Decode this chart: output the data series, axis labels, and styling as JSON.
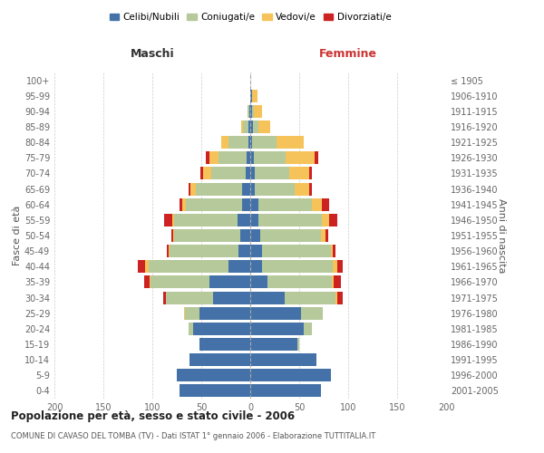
{
  "age_groups": [
    "0-4",
    "5-9",
    "10-14",
    "15-19",
    "20-24",
    "25-29",
    "30-34",
    "35-39",
    "40-44",
    "45-49",
    "50-54",
    "55-59",
    "60-64",
    "65-69",
    "70-74",
    "75-79",
    "80-84",
    "85-89",
    "90-94",
    "95-99",
    "100+"
  ],
  "birth_years": [
    "2001-2005",
    "1996-2000",
    "1991-1995",
    "1986-1990",
    "1981-1985",
    "1976-1980",
    "1971-1975",
    "1966-1970",
    "1961-1965",
    "1956-1960",
    "1951-1955",
    "1946-1950",
    "1941-1945",
    "1936-1940",
    "1931-1935",
    "1926-1930",
    "1921-1925",
    "1916-1920",
    "1911-1915",
    "1906-1910",
    "≤ 1905"
  ],
  "males": {
    "celibe": [
      72,
      75,
      62,
      52,
      58,
      52,
      38,
      42,
      22,
      12,
      10,
      13,
      8,
      8,
      5,
      4,
      2,
      2,
      1,
      0,
      0
    ],
    "coniugato": [
      0,
      0,
      0,
      0,
      5,
      15,
      48,
      60,
      82,
      70,
      68,
      65,
      58,
      48,
      35,
      28,
      20,
      5,
      2,
      0,
      0
    ],
    "vedovo": [
      0,
      0,
      0,
      0,
      0,
      1,
      0,
      1,
      3,
      1,
      1,
      2,
      3,
      5,
      8,
      10,
      8,
      2,
      0,
      0,
      0
    ],
    "divorziato": [
      0,
      0,
      0,
      0,
      0,
      0,
      3,
      5,
      8,
      2,
      2,
      8,
      3,
      2,
      3,
      3,
      0,
      0,
      0,
      0,
      0
    ]
  },
  "females": {
    "nubile": [
      72,
      82,
      68,
      48,
      55,
      52,
      35,
      18,
      12,
      12,
      10,
      8,
      8,
      5,
      5,
      4,
      2,
      3,
      2,
      2,
      0
    ],
    "coniugata": [
      0,
      0,
      0,
      2,
      8,
      22,
      52,
      65,
      72,
      70,
      62,
      65,
      55,
      40,
      35,
      32,
      25,
      5,
      2,
      0,
      0
    ],
    "vedova": [
      0,
      0,
      0,
      0,
      0,
      0,
      2,
      2,
      5,
      2,
      5,
      8,
      10,
      15,
      20,
      30,
      28,
      12,
      8,
      5,
      0
    ],
    "divorziata": [
      0,
      0,
      0,
      0,
      0,
      0,
      5,
      8,
      5,
      3,
      3,
      8,
      8,
      3,
      3,
      3,
      0,
      0,
      0,
      0,
      0
    ]
  },
  "colors": {
    "celibe": "#4472a8",
    "coniugato": "#b5c99a",
    "vedovo": "#f5c35a",
    "divorziato": "#cc2222"
  },
  "legend_labels": [
    "Celibi/Nubili",
    "Coniugati/e",
    "Vedovi/e",
    "Divorziati/e"
  ],
  "title": "Popolazione per età, sesso e stato civile - 2006",
  "subtitle": "COMUNE DI CAVASO DEL TOMBA (TV) - Dati ISTAT 1° gennaio 2006 - Elaborazione TUTTITALIA.IT",
  "label_maschi": "Maschi",
  "label_femmine": "Femmine",
  "ylabel_left": "Fasce di età",
  "ylabel_right": "Anni di nascita",
  "xlim": 200,
  "background": "#ffffff",
  "grid_color": "#cccccc"
}
